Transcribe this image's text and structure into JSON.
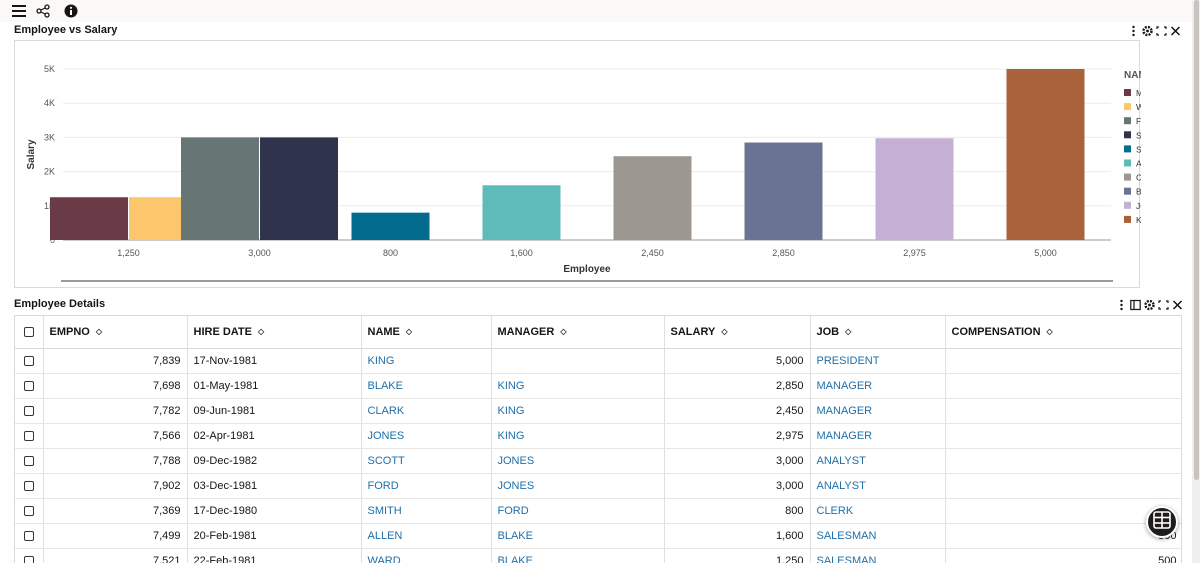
{
  "toolbar": {
    "menu_icon": "hamburger-icon",
    "share_icon": "share-icon",
    "info_icon": "info-icon"
  },
  "chart_panel": {
    "title": "Employee vs Salary",
    "tools": [
      "more-vertical-icon",
      "gear-icon",
      "expand-icon",
      "close-icon"
    ]
  },
  "chart_data": {
    "type": "bar",
    "xlabel": "Employee",
    "ylabel": "Salary",
    "ylim": [
      0,
      5000
    ],
    "y_ticks": [
      "0",
      "1K",
      "2K",
      "3K",
      "4K",
      "5K"
    ],
    "categories": [
      "1,250",
      "3,000",
      "800",
      "1,600",
      "2,450",
      "2,850",
      "2,975",
      "5,000"
    ],
    "legend_title": "NAME",
    "legend_placement": "right",
    "grid": true,
    "series": [
      {
        "name": "MARTIN",
        "color": "#6b3a47",
        "category": "1,250",
        "value": 1250
      },
      {
        "name": "WARD",
        "color": "#fcc66d",
        "category": "1,250",
        "value": 1250
      },
      {
        "name": "FORD",
        "color": "#677674",
        "category": "3,000",
        "value": 3000
      },
      {
        "name": "SCOTT",
        "color": "#2f344c",
        "category": "3,000",
        "value": 3000
      },
      {
        "name": "SMITH",
        "color": "#036b8d",
        "category": "800",
        "value": 800
      },
      {
        "name": "ALLEN",
        "color": "#5fbbb9",
        "category": "1,600",
        "value": 1600
      },
      {
        "name": "CLARK",
        "color": "#9c9790",
        "category": "2,450",
        "value": 2450
      },
      {
        "name": "BLAKE",
        "color": "#6b7395",
        "category": "2,850",
        "value": 2850
      },
      {
        "name": "JONES",
        "color": "#c5b0d5",
        "category": "2,975",
        "value": 2975
      },
      {
        "name": "KING",
        "color": "#a9623a",
        "category": "5,000",
        "value": 5000
      }
    ]
  },
  "table_panel": {
    "title": "Employee Details",
    "tools": [
      "more-vertical-icon",
      "panel-icon",
      "gear-icon",
      "expand-icon",
      "close-icon"
    ],
    "columns": [
      "EMPNO",
      "HIRE DATE",
      "NAME",
      "MANAGER",
      "SALARY",
      "JOB",
      "COMPENSATION"
    ],
    "rows": [
      [
        "7,839",
        "17-Nov-1981",
        "KING",
        "",
        "5,000",
        "PRESIDENT",
        ""
      ],
      [
        "7,698",
        "01-May-1981",
        "BLAKE",
        "KING",
        "2,850",
        "MANAGER",
        ""
      ],
      [
        "7,782",
        "09-Jun-1981",
        "CLARK",
        "KING",
        "2,450",
        "MANAGER",
        ""
      ],
      [
        "7,566",
        "02-Apr-1981",
        "JONES",
        "KING",
        "2,975",
        "MANAGER",
        ""
      ],
      [
        "7,788",
        "09-Dec-1982",
        "SCOTT",
        "JONES",
        "3,000",
        "ANALYST",
        ""
      ],
      [
        "7,902",
        "03-Dec-1981",
        "FORD",
        "JONES",
        "3,000",
        "ANALYST",
        ""
      ],
      [
        "7,369",
        "17-Dec-1980",
        "SMITH",
        "FORD",
        "800",
        "CLERK",
        ""
      ],
      [
        "7,499",
        "20-Feb-1981",
        "ALLEN",
        "BLAKE",
        "1,600",
        "SALESMAN",
        "300"
      ],
      [
        "7,521",
        "22-Feb-1981",
        "WARD",
        "BLAKE",
        "1,250",
        "SALESMAN",
        "500"
      ]
    ]
  },
  "fab": {
    "icon": "table-grid-icon"
  }
}
